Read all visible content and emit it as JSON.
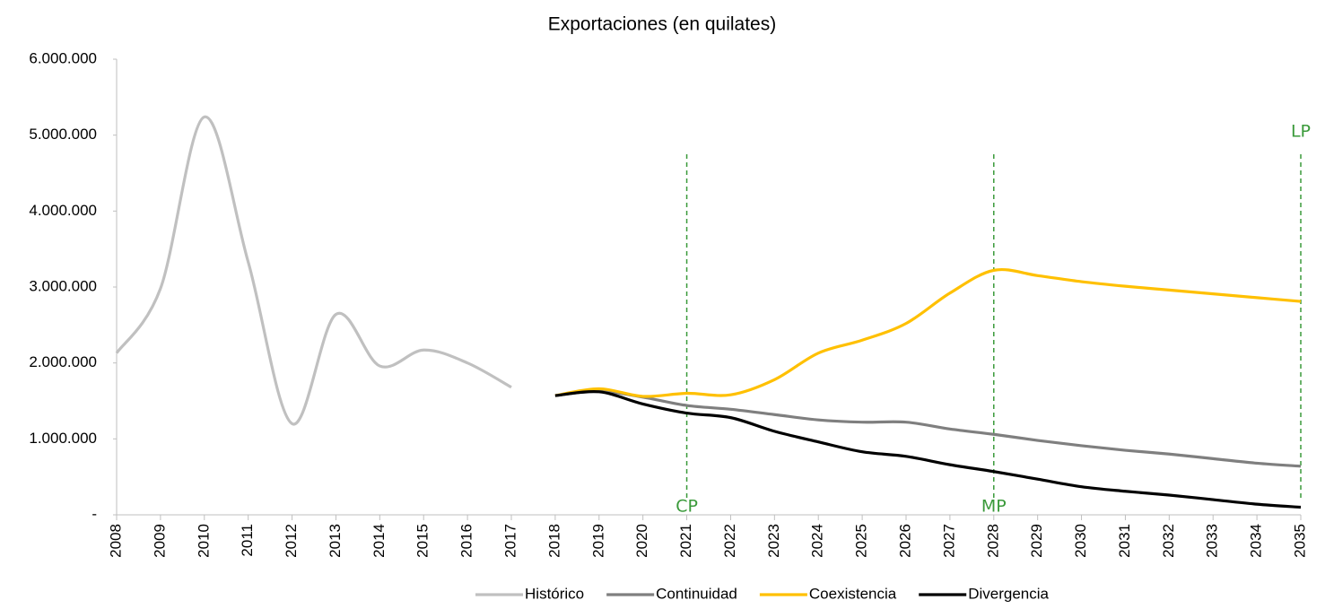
{
  "chart_data": {
    "type": "line",
    "title": "Exportaciones (en quilates)",
    "categories": [
      "2008",
      "2009",
      "2010",
      "2011",
      "2012",
      "2013",
      "2014",
      "2015",
      "2016",
      "2017",
      "2018",
      "2019",
      "2020",
      "2021",
      "2022",
      "2023",
      "2024",
      "2025",
      "2026",
      "2027",
      "2028",
      "2029",
      "2030",
      "2031",
      "2032",
      "2033",
      "2034",
      "2035"
    ],
    "series": [
      {
        "name": "Histórico",
        "color": "#c0c0c0",
        "values": [
          2130000,
          2980000,
          5240000,
          3330000,
          1200000,
          2640000,
          1960000,
          2170000,
          2000000,
          1680000,
          null,
          null,
          null,
          null,
          null,
          null,
          null,
          null,
          null,
          null,
          null,
          null,
          null,
          null,
          null,
          null,
          null,
          null
        ]
      },
      {
        "name": "Continuidad",
        "color": "#7f7f7f",
        "values": [
          null,
          null,
          null,
          null,
          null,
          null,
          null,
          null,
          null,
          null,
          1570000,
          1630000,
          1550000,
          1440000,
          1390000,
          1320000,
          1250000,
          1220000,
          1220000,
          1130000,
          1060000,
          980000,
          910000,
          850000,
          800000,
          740000,
          680000,
          640000
        ]
      },
      {
        "name": "Coexistencia",
        "color": "#ffc000",
        "values": [
          null,
          null,
          null,
          null,
          null,
          null,
          null,
          null,
          null,
          null,
          1570000,
          1660000,
          1560000,
          1600000,
          1580000,
          1780000,
          2130000,
          2300000,
          2520000,
          2920000,
          3220000,
          3150000,
          3070000,
          3010000,
          2960000,
          2910000,
          2860000,
          2810000
        ]
      },
      {
        "name": "Divergencia",
        "color": "#000000",
        "values": [
          null,
          null,
          null,
          null,
          null,
          null,
          null,
          null,
          null,
          null,
          1570000,
          1620000,
          1460000,
          1340000,
          1280000,
          1100000,
          960000,
          830000,
          770000,
          660000,
          570000,
          470000,
          370000,
          310000,
          260000,
          200000,
          140000,
          100000
        ]
      }
    ],
    "ylim": [
      0,
      6000000
    ],
    "yticks": [
      {
        "value": 0,
        "label": "-"
      },
      {
        "value": 1000000,
        "label": "1.000.000"
      },
      {
        "value": 2000000,
        "label": "2.000.000"
      },
      {
        "value": 3000000,
        "label": "3.000.000"
      },
      {
        "value": 4000000,
        "label": "4.000.000"
      },
      {
        "value": 5000000,
        "label": "5.000.000"
      },
      {
        "value": 6000000,
        "label": "6.000.000"
      }
    ],
    "annotations": [
      {
        "x": "2021",
        "label": "CP",
        "position": "bottom"
      },
      {
        "x": "2028",
        "label": "MP",
        "position": "bottom"
      },
      {
        "x": "2035",
        "label": "LP",
        "position": "top"
      }
    ],
    "annotation_color": "#3a9a3a",
    "legend": "bottom"
  }
}
